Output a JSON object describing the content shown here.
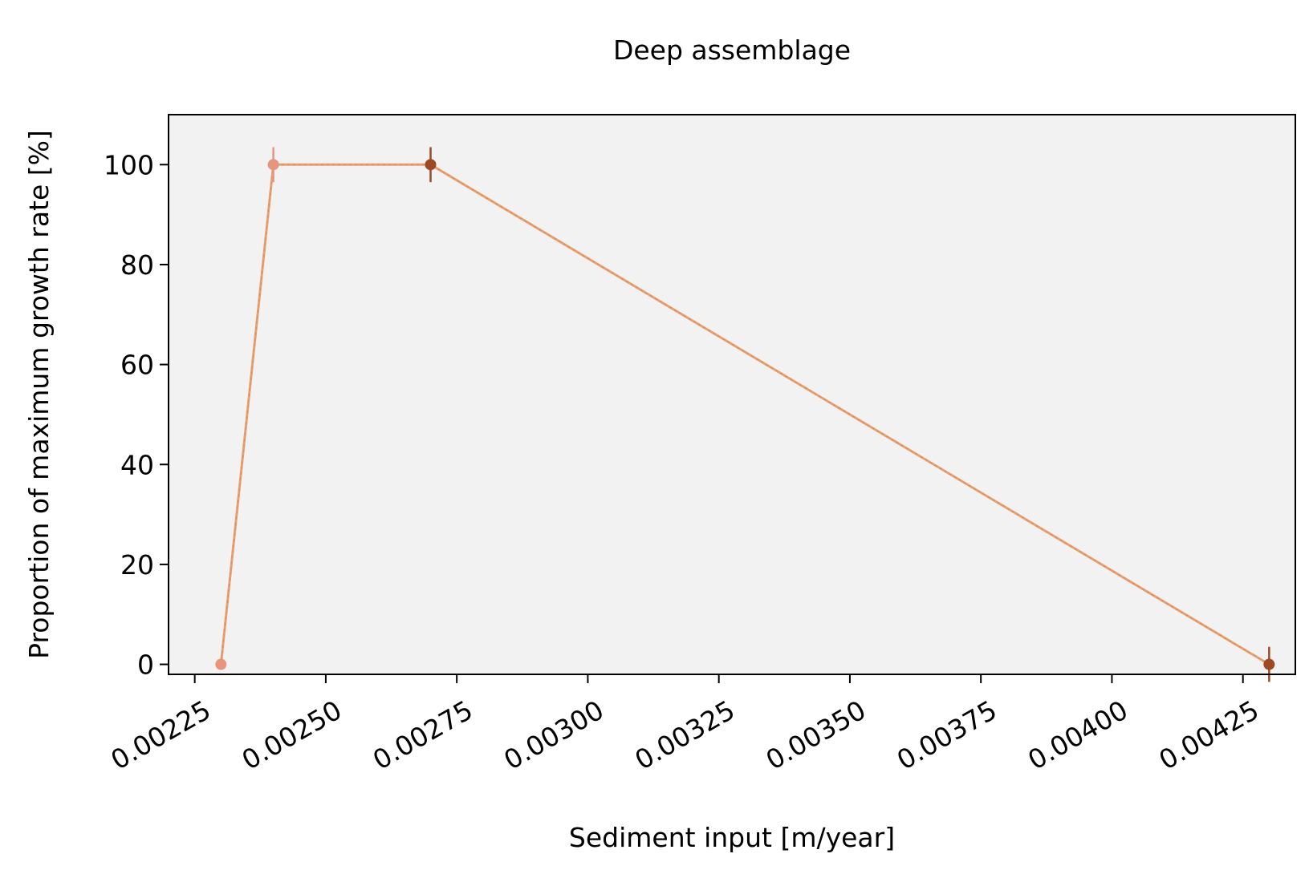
{
  "chart_data": {
    "type": "line",
    "title": "Deep assemblage",
    "xlabel": "Sediment input [m/year]",
    "ylabel": "Proportion of maximum growth rate [%]",
    "xlim": [
      0.0022,
      0.00435
    ],
    "ylim": [
      -2,
      110
    ],
    "x_ticks": [
      0.00225,
      0.0025,
      0.00275,
      0.003,
      0.00325,
      0.0035,
      0.00375,
      0.004,
      0.00425
    ],
    "x_tick_labels": [
      "0.00225",
      "0.00250",
      "0.00275",
      "0.00300",
      "0.00325",
      "0.00350",
      "0.00375",
      "0.00400",
      "0.00425"
    ],
    "y_ticks": [
      0,
      20,
      40,
      60,
      80,
      100
    ],
    "y_tick_labels": [
      "0",
      "20",
      "40",
      "60",
      "80",
      "100"
    ],
    "grid": false,
    "background_color": "#f2f2f2",
    "line_color": "#e8a070",
    "points": [
      {
        "x": 0.0023,
        "y": 0,
        "err": 0,
        "color": "#e8957e"
      },
      {
        "x": 0.0024,
        "y": 100,
        "err": 3.5,
        "color": "#e8957e"
      },
      {
        "x": 0.0027,
        "y": 100,
        "err": 3.5,
        "color": "#9c4a25"
      },
      {
        "x": 0.0043,
        "y": 0,
        "err": 3.5,
        "color": "#9c4a25"
      }
    ]
  }
}
